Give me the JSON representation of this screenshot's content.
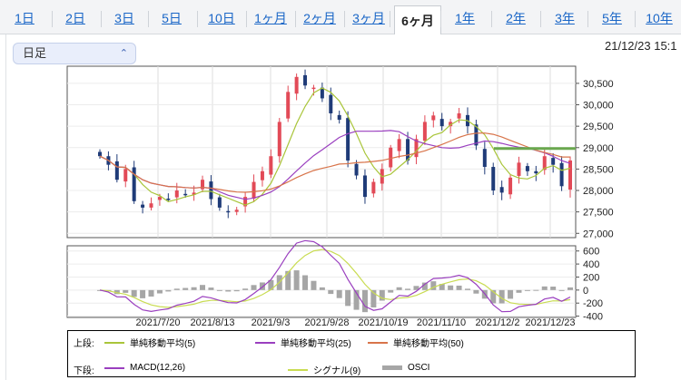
{
  "tabs": [
    "1日",
    "2日",
    "3日",
    "5日",
    "10日",
    "1ヶ月",
    "2ヶ月",
    "3ヶ月",
    "6ヶ月",
    "1年",
    "2年",
    "3年",
    "5年",
    "10年"
  ],
  "active_tab": "6ヶ月",
  "period_select": {
    "value": "日足"
  },
  "datetime": "21/12/23 15:1",
  "chart_data": [
    {
      "type": "candlestick",
      "yticks": [
        "30,500",
        "30,000",
        "29,500",
        "29,000",
        "28,500",
        "28,000",
        "27,500",
        "27,000"
      ],
      "ylim": [
        26900,
        30900
      ],
      "xticks": [
        "2021/7/20",
        "2021/8/13",
        "2021/9/3",
        "2021/9/28",
        "2021/10/19",
        "2021/11/10",
        "2021/12/2",
        "2021/12/23"
      ],
      "series": [
        {
          "name": "単純移動平均(5)",
          "color": "#a9c53a"
        },
        {
          "name": "単純移動平均(25)",
          "color": "#9a3fbf"
        },
        {
          "name": "単純移動平均(50)",
          "color": "#d8744a"
        }
      ],
      "candle_colors": {
        "up": "#e24a57",
        "down": "#1f3b78"
      },
      "closes": [
        28800,
        28600,
        28250,
        28500,
        27750,
        27600,
        27700,
        27850,
        27800,
        28000,
        27900,
        27950,
        28250,
        27800,
        27600,
        27500,
        27550,
        27850,
        28200,
        28450,
        28800,
        29600,
        30300,
        30650,
        30450,
        30400,
        30150,
        29800,
        29650,
        28700,
        28350,
        27850,
        28200,
        28500,
        29000,
        29200,
        28700,
        29200,
        29600,
        29750,
        29500,
        29600,
        29800,
        29500,
        29050,
        28550,
        28000,
        27950,
        28300,
        28650,
        28450,
        28400,
        28800,
        28600,
        28100,
        28700
      ]
    },
    {
      "type": "macd",
      "yticks": [
        "600",
        "400",
        "200",
        "0",
        "-200",
        "-400"
      ],
      "ylim": [
        -420,
        680
      ],
      "series": [
        {
          "name": "MACD(12,26)",
          "color": "#9a3fbf"
        },
        {
          "name": "シグナル(9)",
          "color": "#c9dc52"
        },
        {
          "name": "OSCI",
          "color": "#a6a6a6"
        }
      ]
    }
  ],
  "legend": {
    "upper_label": "上段:",
    "lower_label": "下段:",
    "upper": [
      "単純移動平均(5)",
      "単純移動平均(25)",
      "単純移動平均(50)"
    ],
    "lower": [
      "MACD(12,26)",
      "シグナル(9)",
      "OSCI"
    ]
  }
}
